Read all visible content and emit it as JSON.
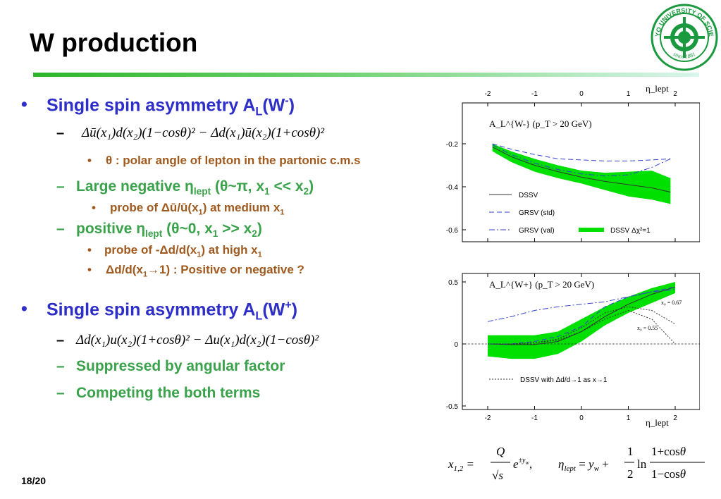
{
  "slide": {
    "title": "W production",
    "number": "18/20",
    "logo_text_top": "TOKYO UNIVERSITY OF SCIENCE",
    "logo_text_bottom": "since 1881"
  },
  "colors": {
    "title_rule": "#2bb52b",
    "level1": "#2e2ec9",
    "level2": "#3aa24a",
    "level3": "#a05a1f",
    "band": "#00e000"
  },
  "content": {
    "wminus_heading": "Single spin asymmetry A",
    "wminus_sub": "L",
    "wminus_tail": "(W",
    "wminus_sup": "-",
    "wminus_close": ")",
    "wminus_formula": "Δū(x₁)d(x₂)(1−cosθ)² − Δd(x₁)ū(x₂)(1+cosθ)²",
    "polar_note": "θ : polar angle of lepton in the partonic c.m.s",
    "large_neg": "Large negative η",
    "large_neg_sub": "lept",
    "large_neg_tail": " (θ~π, x",
    "large_neg_tail2": " << x",
    "probe1": "probe of Δū/ū(x",
    "probe1_tail": ") at medium x",
    "positive": "positive η",
    "positive_sub": "lept",
    "positive_tail": " (θ~0, x",
    "positive_tail2": " >> x",
    "probe2": "probe of -Δd/d(x",
    "probe2_tail": ") at high x",
    "limit_note": "Δd/d(x",
    "limit_note_tail": "→1) : Positive or negative ?",
    "wplus_heading": "Single spin asymmetry A",
    "wplus_sub": "L",
    "wplus_tail": "(W",
    "wplus_sup": "+",
    "wplus_close": ")",
    "wplus_formula": "Δd(x₁)u(x₂)(1+cosθ)² − Δu(x₁)d(x₂)(1−cosθ)²",
    "suppressed": "Suppressed by angular factor",
    "competing": "Competing the both terms"
  },
  "chart_data": [
    {
      "type": "line",
      "panel": "W-",
      "label": "A_L^{W-} (p_T > 20 GeV)",
      "xlabel": "η_lept",
      "xlim": [
        -2,
        2
      ],
      "ylim": [
        -0.7,
        0.0
      ],
      "xticks": [
        -2,
        -1,
        0,
        1,
        2
      ],
      "yticks": [
        -0.2,
        -0.4,
        -0.6
      ],
      "series": [
        {
          "name": "DSSV",
          "style": "solid",
          "x": [
            -1.9,
            -1.5,
            -1,
            -0.5,
            0,
            0.5,
            1,
            1.5,
            1.9
          ],
          "y": [
            -0.215,
            -0.26,
            -0.3,
            -0.33,
            -0.355,
            -0.375,
            -0.39,
            -0.405,
            -0.425
          ]
        },
        {
          "name": "GRSV (std)",
          "style": "dashed",
          "x": [
            -1.9,
            -1.5,
            -1,
            -0.5,
            0,
            0.5,
            1,
            1.5,
            1.9
          ],
          "y": [
            -0.2,
            -0.225,
            -0.25,
            -0.27,
            -0.275,
            -0.28,
            -0.28,
            -0.275,
            -0.27
          ]
        },
        {
          "name": "GRSV (val)",
          "style": "dashdot",
          "x": [
            -1.9,
            -1.5,
            -1,
            -0.5,
            0,
            0.5,
            1,
            1.5,
            1.9
          ],
          "y": [
            -0.205,
            -0.25,
            -0.29,
            -0.32,
            -0.34,
            -0.35,
            -0.345,
            -0.31,
            -0.27
          ]
        }
      ],
      "band": {
        "name": "DSSV Δχ²=1",
        "x": [
          -1.9,
          -1.5,
          -1,
          -0.5,
          0,
          0.5,
          1,
          1.5,
          1.9
        ],
        "upper": [
          -0.2,
          -0.235,
          -0.27,
          -0.3,
          -0.325,
          -0.335,
          -0.33,
          -0.325,
          -0.36
        ],
        "lower": [
          -0.235,
          -0.285,
          -0.33,
          -0.36,
          -0.385,
          -0.415,
          -0.445,
          -0.46,
          -0.48
        ]
      }
    },
    {
      "type": "line",
      "panel": "W+",
      "label": "A_L^{W+} (p_T > 20 GeV)",
      "xlabel": "η_lept",
      "xlim": [
        -2,
        2
      ],
      "ylim": [
        -0.5,
        0.55
      ],
      "xticks": [
        -2,
        -1,
        0,
        1,
        2
      ],
      "yticks": [
        0.5,
        0,
        -0.5
      ],
      "annotations": [
        "x₀ = 0.67",
        "x₀ = 0.55"
      ],
      "series": [
        {
          "name": "DSSV",
          "style": "solid",
          "x": [
            -2,
            -1.5,
            -1,
            -0.5,
            0,
            0.5,
            1,
            1.5,
            2
          ],
          "y": [
            0.0,
            -0.005,
            -0.005,
            0.02,
            0.1,
            0.22,
            0.32,
            0.4,
            0.46
          ]
        },
        {
          "name": "GRSV (val)",
          "style": "dashdot",
          "x": [
            -2,
            -1.5,
            -1,
            -0.5,
            0,
            0.5,
            1,
            1.5,
            2
          ],
          "y": [
            0.18,
            0.22,
            0.27,
            0.3,
            0.32,
            0.34,
            0.38,
            0.42,
            0.44
          ]
        },
        {
          "name": "GRSV (std)",
          "style": "dashed",
          "x": [
            -2,
            -1.5,
            -1,
            -0.5,
            0,
            0.5,
            1,
            1.5,
            2
          ],
          "y": [
            0.0,
            0.0,
            0.02,
            0.06,
            0.14,
            0.3,
            0.38,
            0.42,
            0.46
          ]
        },
        {
          "name": "DSSV with Δd/d→1 as x→1 (x₀ = 0.67)",
          "style": "dotted",
          "x": [
            -2,
            -1.5,
            -1,
            -0.5,
            0,
            0.5,
            1,
            1.5,
            2
          ],
          "y": [
            0.0,
            0.0,
            0.01,
            0.04,
            0.13,
            0.25,
            0.3,
            0.27,
            0.16
          ]
        },
        {
          "name": "DSSV with Δd/d→1 as x→1 (x₀ = 0.55)",
          "style": "dotted",
          "x": [
            -2,
            -1.5,
            -1,
            -0.5,
            0,
            0.5,
            1,
            1.5,
            2
          ],
          "y": [
            0.0,
            0.0,
            0.01,
            0.03,
            0.1,
            0.2,
            0.27,
            0.2,
            0.0
          ]
        }
      ],
      "band": {
        "name": "DSSV Δχ²=1",
        "x": [
          -2,
          -1.5,
          -1,
          -0.5,
          0,
          0.5,
          1,
          1.5,
          2
        ],
        "upper": [
          0.07,
          0.07,
          0.07,
          0.1,
          0.2,
          0.3,
          0.38,
          0.45,
          0.5
        ],
        "lower": [
          -0.1,
          -0.12,
          -0.12,
          -0.08,
          0.02,
          0.15,
          0.25,
          0.33,
          0.41
        ]
      },
      "legend": [
        "DSSV with Δd/d→1 as x→1"
      ]
    }
  ],
  "formula_bottom": {
    "left": "x₁,₂ = (Q/√s) e^{±y_w}",
    "right": "η_lept = y_w + ½ ln (1+cosθ)/(1−cosθ)"
  }
}
